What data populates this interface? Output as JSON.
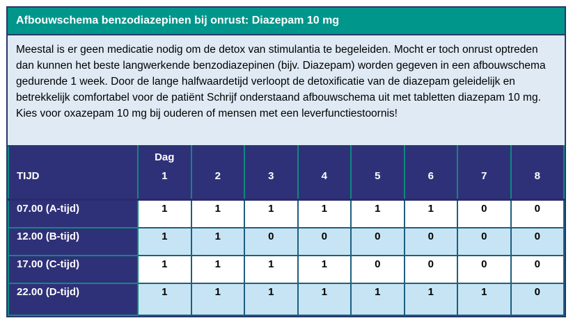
{
  "title": "Afbouwschema benzodiazepinen bij onrust: Diazepam 10 mg",
  "intro": "Meestal is er geen medicatie nodig om de detox van stimulantia te begeleiden. Mocht er toch onrust optreden dan kunnen het beste langwerkende benzodiazepinen (bijv. Diazepam) worden gegeven in een afbouwschema gedurende 1 week. Door de lange halfwaardetijd verloopt de detoxificatie van de diazepam geleidelijk en betrekkelijk comfortabel voor de patiënt Schrijf onderstaand afbouwschema uit met tabletten diazepam 10 mg. Kies voor oxazepam 10 mg bij ouderen of mensen met een leverfunctiestoornis!",
  "table": {
    "corner_label": "TIJD",
    "day_group_label": "Dag",
    "day_numbers": [
      "1",
      "2",
      "3",
      "4",
      "5",
      "6",
      "7",
      "8"
    ],
    "rows": [
      {
        "time": "07.00 (A-tijd)",
        "values": [
          "1",
          "1",
          "1",
          "1",
          "1",
          "1",
          "0",
          "0"
        ]
      },
      {
        "time": "12.00 (B-tijd)",
        "values": [
          "1",
          "1",
          "0",
          "0",
          "0",
          "0",
          "0",
          "0"
        ]
      },
      {
        "time": "17.00 (C-tijd)",
        "values": [
          "1",
          "1",
          "1",
          "1",
          "0",
          "0",
          "0",
          "0"
        ]
      },
      {
        "time": "22.00 (D-tijd)",
        "values": [
          "1",
          "1",
          "1",
          "1",
          "1",
          "1",
          "1",
          "0"
        ]
      }
    ]
  },
  "colors": {
    "title_bar_teal": "#00968b",
    "navy_cell": "#2f3178",
    "intro_background": "#dfeaf4",
    "alt_row_blue": "#c6e4f4",
    "data_cell_border": "#1e5e7e",
    "navy_cell_border": "#0e8a80",
    "outer_border": "#27386a"
  }
}
